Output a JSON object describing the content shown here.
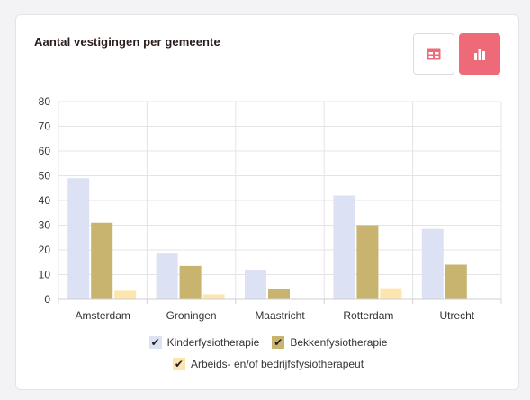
{
  "card": {
    "title": "Aantal vestigingen per gemeente"
  },
  "toolbar": {
    "table_view_icon": "table-icon",
    "chart_view_icon": "bar-chart-icon",
    "active_view": "chart",
    "active_color": "#ee6a78"
  },
  "chart_data": {
    "type": "bar",
    "title": "Aantal vestigingen per gemeente",
    "xlabel": "",
    "ylabel": "",
    "ylim": [
      0,
      80
    ],
    "yticks": [
      "0",
      "10",
      "20",
      "30",
      "40",
      "50",
      "60",
      "70",
      "80"
    ],
    "grid": true,
    "legend_position": "bottom",
    "categories": [
      "Amsterdam",
      "Groningen",
      "Maastricht",
      "Rotterdam",
      "Utrecht"
    ],
    "series": [
      {
        "name": "Kinderfysiotherapie",
        "color": "#dce2f3",
        "values": [
          49,
          18.5,
          12,
          42,
          28.5
        ]
      },
      {
        "name": "Bekkenfysiotherapie",
        "color": "#c8b46e",
        "values": [
          31,
          13.5,
          4,
          30,
          14
        ]
      },
      {
        "name": "Arbeids- en/of bedrijfsfysiotherapeut",
        "color": "#fde6ad",
        "values": [
          3.5,
          2,
          0,
          4.5,
          0
        ]
      }
    ]
  },
  "legend": {
    "check_glyph": "✔",
    "items": [
      {
        "label": "Kinderfysiotherapie",
        "color": "#dce2f3",
        "checked": true
      },
      {
        "label": "Bekkenfysiotherapie",
        "color": "#c8b46e",
        "checked": true
      },
      {
        "label": "Arbeids- en/of bedrijfsfysiotherapeut",
        "color": "#fde6ad",
        "checked": true
      }
    ]
  }
}
